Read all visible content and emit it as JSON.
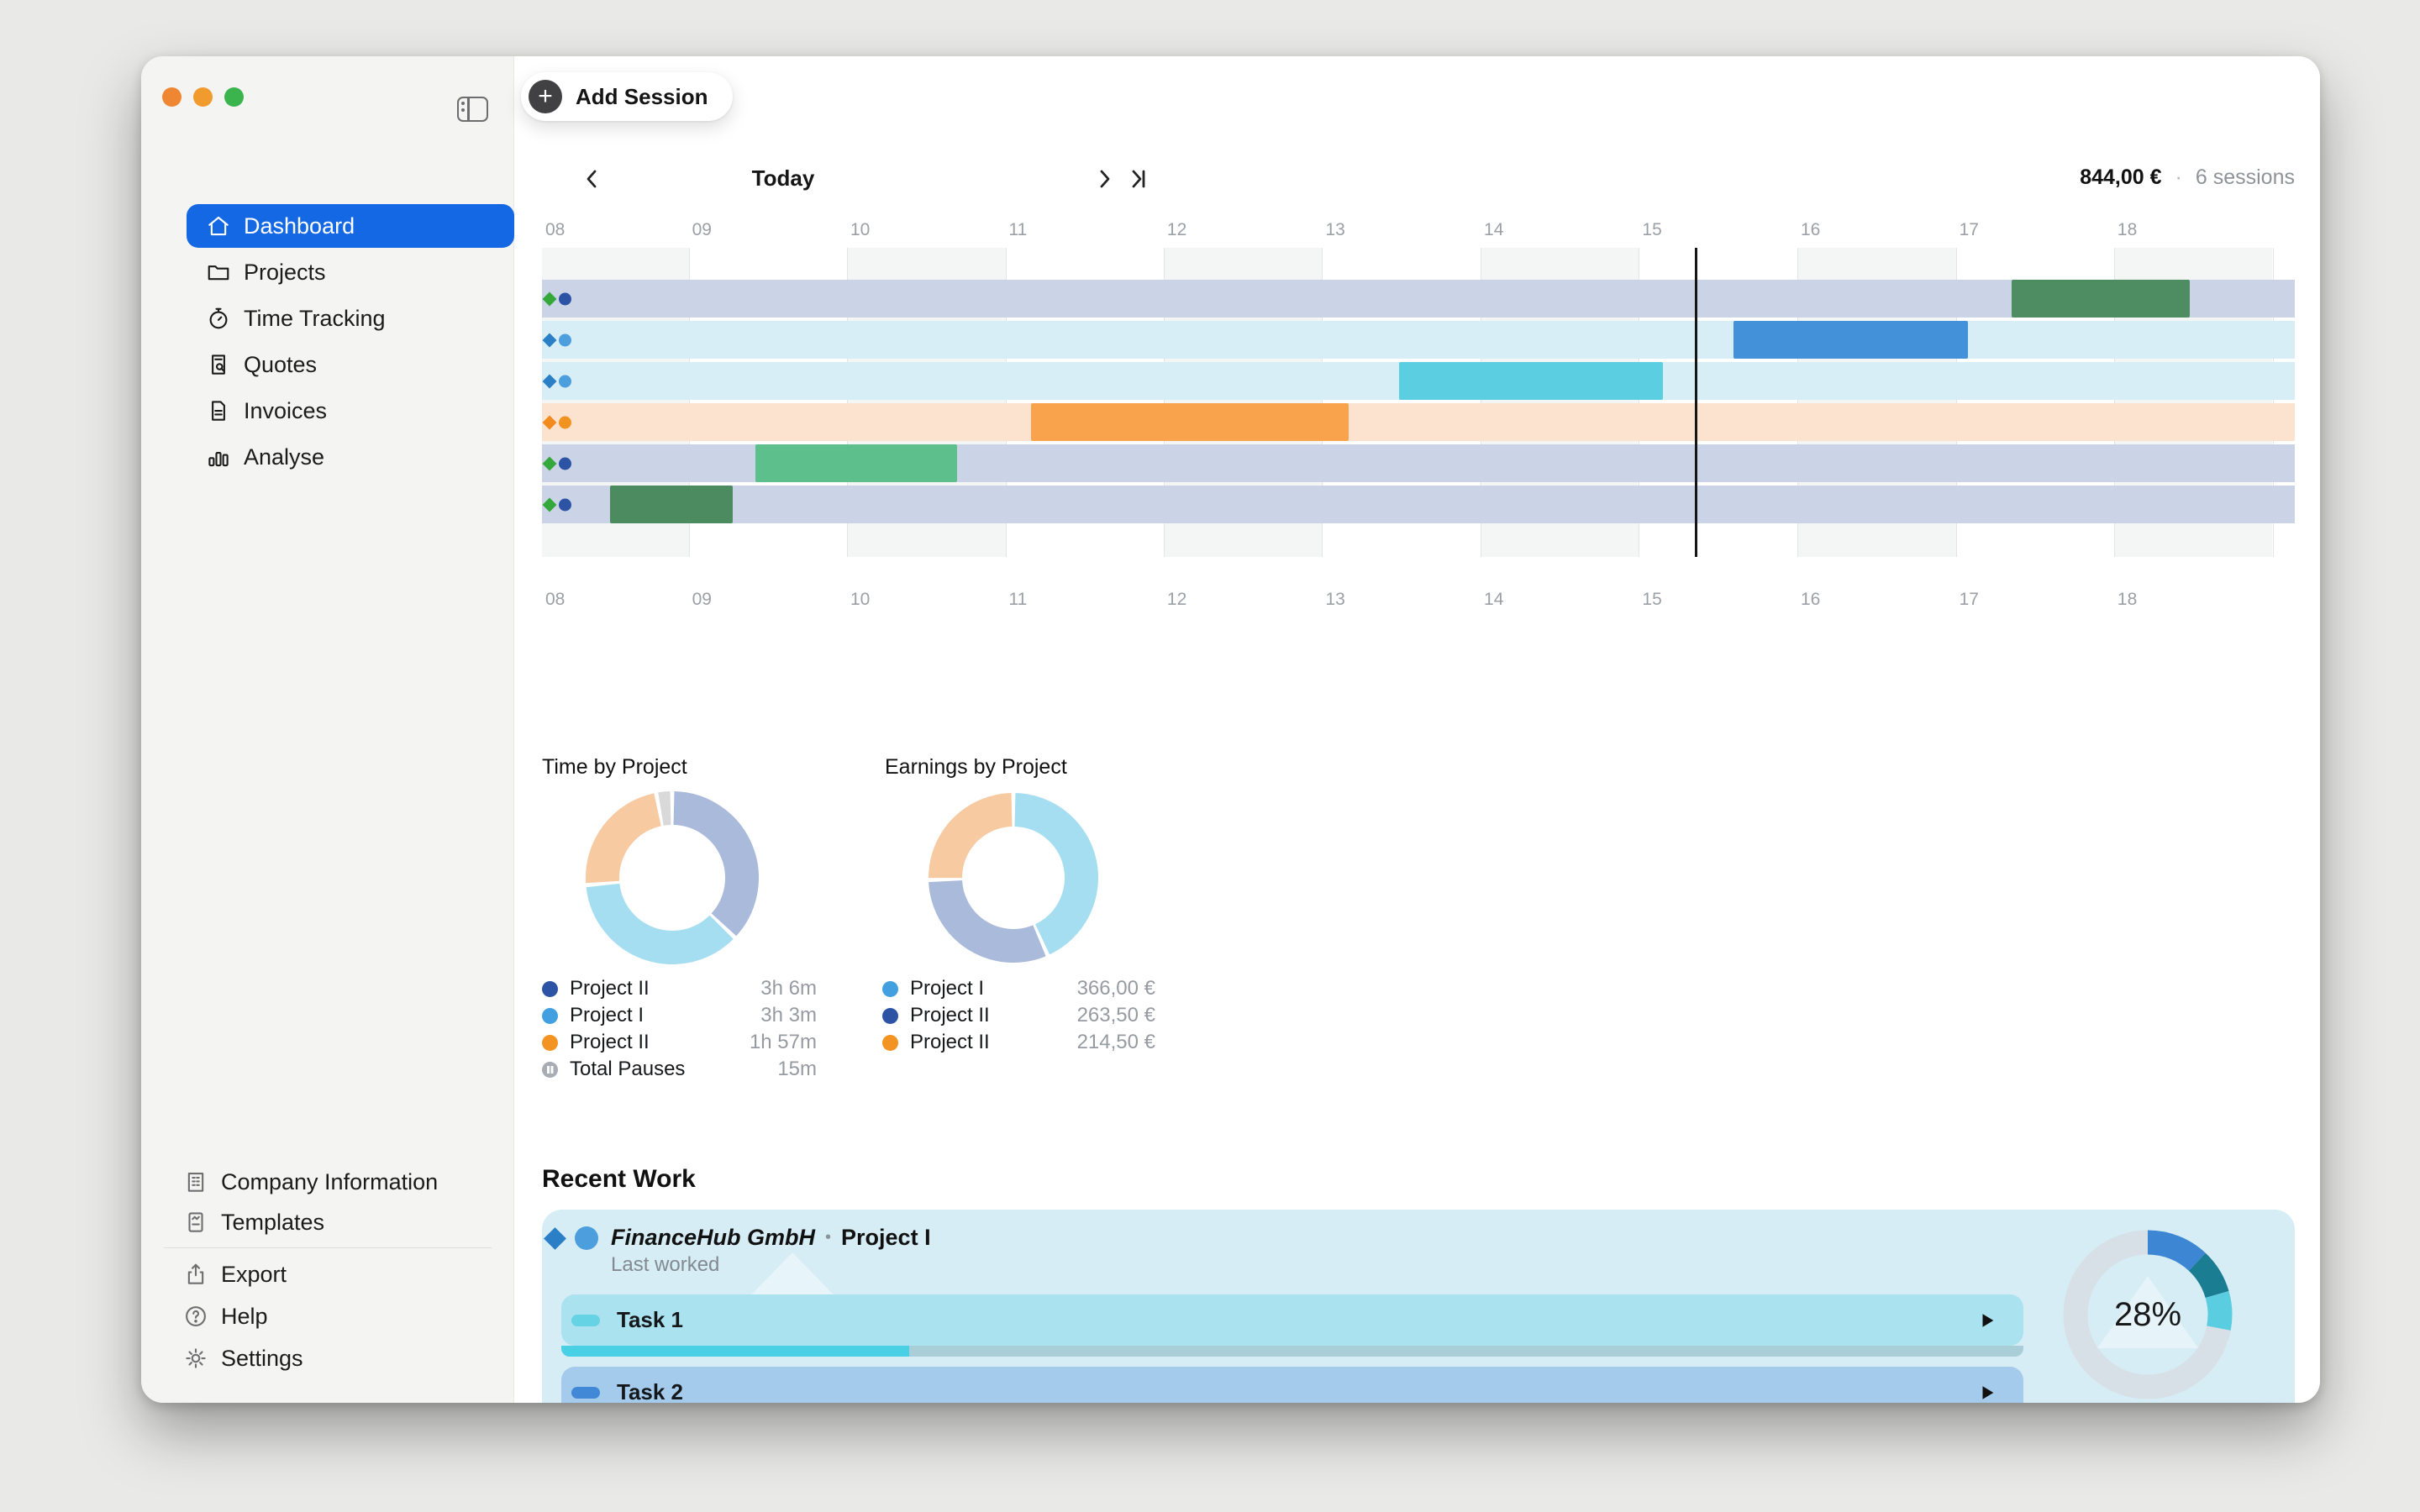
{
  "window": {
    "traffic_lights": [
      "#ee8632",
      "#f19a2e",
      "#3cb44d"
    ]
  },
  "sidebar": {
    "items": [
      {
        "id": "dashboard",
        "label": "Dashboard",
        "icon": "home",
        "selected": true
      },
      {
        "id": "projects",
        "label": "Projects",
        "icon": "folder",
        "selected": false
      },
      {
        "id": "time-tracking",
        "label": "Time Tracking",
        "icon": "stopwatch",
        "selected": false
      },
      {
        "id": "quotes",
        "label": "Quotes",
        "icon": "doc-search",
        "selected": false
      },
      {
        "id": "invoices",
        "label": "Invoices",
        "icon": "doc-lines",
        "selected": false
      },
      {
        "id": "analyse",
        "label": "Analyse",
        "icon": "bar-chart",
        "selected": false
      }
    ],
    "footer_items": [
      {
        "id": "company-information",
        "label": "Company Information",
        "icon": "building"
      },
      {
        "id": "templates",
        "label": "Templates",
        "icon": "doc-template"
      },
      {
        "id": "divider",
        "divider": true
      },
      {
        "id": "export",
        "label": "Export",
        "icon": "export"
      },
      {
        "id": "help",
        "label": "Help",
        "icon": "help"
      },
      {
        "id": "settings",
        "label": "Settings",
        "icon": "gear"
      }
    ]
  },
  "toolbar": {
    "add_session_label": "Add Session"
  },
  "timeline_nav": {
    "today_label": "Today"
  },
  "summary": {
    "total": "844,00 €",
    "separator": "·",
    "sessions": "6 sessions"
  },
  "gantt": {
    "hours": [
      {
        "label": "08",
        "pct": 0
      },
      {
        "label": "09",
        "pct": 8.37
      },
      {
        "label": "10",
        "pct": 17.4
      },
      {
        "label": "11",
        "pct": 26.44
      },
      {
        "label": "12",
        "pct": 35.47
      },
      {
        "label": "13",
        "pct": 44.51
      },
      {
        "label": "14",
        "pct": 53.55
      },
      {
        "label": "15",
        "pct": 62.58
      },
      {
        "label": "16",
        "pct": 71.62
      },
      {
        "label": "17",
        "pct": 80.66
      },
      {
        "label": "18",
        "pct": 89.69
      }
    ],
    "extra_gridline_pct": 98.73,
    "bands": [
      [
        0,
        8.37
      ],
      [
        17.4,
        26.44
      ],
      [
        35.47,
        44.51
      ],
      [
        53.55,
        62.58
      ],
      [
        71.62,
        80.66
      ],
      [
        89.69,
        98.73
      ]
    ],
    "current_time_pct": 65.77,
    "rows": [
      {
        "track": "#cbd4e6",
        "diamond": "#35a83c",
        "dot": "#2d54a4",
        "bar": {
          "left": 83.85,
          "width": 10.16,
          "color": "#4e8d62"
        }
      },
      {
        "track": "#d8eef7",
        "diamond": "#2a7fc6",
        "dot": "#4d9edd",
        "bar": {
          "left": 67.98,
          "width": 13.38,
          "color": "#4391d8"
        }
      },
      {
        "track": "#d8eef7",
        "diamond": "#2a7fc6",
        "dot": "#4d9edd",
        "bar": {
          "left": 48.9,
          "width": 15.05,
          "color": "#5bcee1"
        }
      },
      {
        "track": "#fce3d0",
        "diamond": "#f28a1d",
        "dot": "#f09320",
        "bar": {
          "left": 27.9,
          "width": 18.12,
          "color": "#f9a44c"
        }
      },
      {
        "track": "#cbd4e6",
        "diamond": "#35a83c",
        "dot": "#2d54a4",
        "bar": {
          "left": 12.18,
          "width": 11.51,
          "color": "#5dbf8b"
        }
      },
      {
        "track": "#cbd4e6",
        "diamond": "#35a83c",
        "dot": "#2d54a4",
        "bar": {
          "left": 3.88,
          "width": 7.0,
          "color": "#4c8b5f"
        }
      }
    ]
  },
  "charts": [
    {
      "title": "Time by Project",
      "segments": {
        "values": [
          186,
          183,
          117,
          15
        ],
        "colors": [
          "#a9badb",
          "#a6def1",
          "#f7caa1",
          "#d9d9da"
        ]
      },
      "legend": [
        {
          "dot": "#2d54a4",
          "label": "Project II",
          "value": "3h 6m",
          "icon": "dot"
        },
        {
          "dot": "#42a0e0",
          "label": "Project I",
          "value": "3h 3m",
          "icon": "dot"
        },
        {
          "dot": "#f29322",
          "label": "Project II",
          "value": "1h 57m",
          "icon": "dot"
        },
        {
          "dot": "#a7adb3",
          "label": "Total Pauses",
          "value": "15m",
          "icon": "pause"
        }
      ]
    },
    {
      "title": "Earnings by Project",
      "segments": {
        "values": [
          366,
          263.5,
          214.5
        ],
        "colors": [
          "#a6def1",
          "#a9badb",
          "#f7caa1"
        ]
      },
      "legend": [
        {
          "dot": "#42a0e0",
          "label": "Project I",
          "value": "366,00 €",
          "icon": "dot"
        },
        {
          "dot": "#2d54a4",
          "label": "Project II",
          "value": "263,50 €",
          "icon": "dot"
        },
        {
          "dot": "#f29322",
          "label": "Project II",
          "value": "214,50 €",
          "icon": "dot"
        }
      ]
    }
  ],
  "recent_work": {
    "title": "Recent Work",
    "card": {
      "company": "FinanceHub GmbH",
      "sep": "•",
      "project": "Project I",
      "subtitle": "Last worked",
      "tasks": [
        {
          "label": "Task 1",
          "row_color": "#aae2ef",
          "pill_color": "#66d3e5",
          "progress": {
            "pct": 23.8,
            "fill": "#4ad0e4",
            "track": "#a9ced8"
          }
        },
        {
          "label": "Task 2",
          "row_color": "#a5cbec",
          "pill_color": "#4189d6",
          "progress": null
        }
      ],
      "gauge": {
        "label": "28%",
        "track": "#d7e0e6",
        "values": [
          12,
          8.5,
          7.5
        ],
        "colors": [
          "#3c86d4",
          "#1b7d92",
          "#5bcde1"
        ]
      }
    }
  },
  "chart_data": [
    {
      "type": "pie",
      "title": "Time by Project",
      "categories": [
        "Project II",
        "Project I",
        "Project II",
        "Total Pauses"
      ],
      "values_minutes": [
        186,
        183,
        117,
        15
      ],
      "labels": [
        "3h 6m",
        "3h 3m",
        "1h 57m",
        "15m"
      ],
      "legend_position": "bottom",
      "donut": true
    },
    {
      "type": "pie",
      "title": "Earnings by Project",
      "categories": [
        "Project I",
        "Project II",
        "Project II"
      ],
      "values_eur": [
        366.0,
        263.5,
        214.5
      ],
      "labels": [
        "366,00 €",
        "263,50 €",
        "214,50 €"
      ],
      "legend_position": "bottom",
      "donut": true
    },
    {
      "type": "pie",
      "title": "Task progress gauge",
      "value_percent": 28,
      "segments_percent": [
        12,
        8.5,
        7.5
      ],
      "donut": true
    },
    {
      "type": "bar",
      "title": "Day timeline sessions (Gantt), axis 08-18h, current time ~15:21",
      "categories": [
        "row1",
        "row2",
        "row3",
        "row4",
        "row5",
        "row6"
      ],
      "sessions": [
        {
          "row": 1,
          "start": "17:21",
          "end": "18:29"
        },
        {
          "row": 2,
          "start": "15:36",
          "end": "17:05"
        },
        {
          "row": 3,
          "start": "13:29",
          "end": "15:09"
        },
        {
          "row": 4,
          "start": "11:10",
          "end": "13:10"
        },
        {
          "row": 5,
          "start": "09:25",
          "end": "10:42"
        },
        {
          "row": 6,
          "start": "08:30",
          "end": "09:17"
        }
      ],
      "total": "844,00 €",
      "sessions_count": "6 sessions"
    }
  ]
}
